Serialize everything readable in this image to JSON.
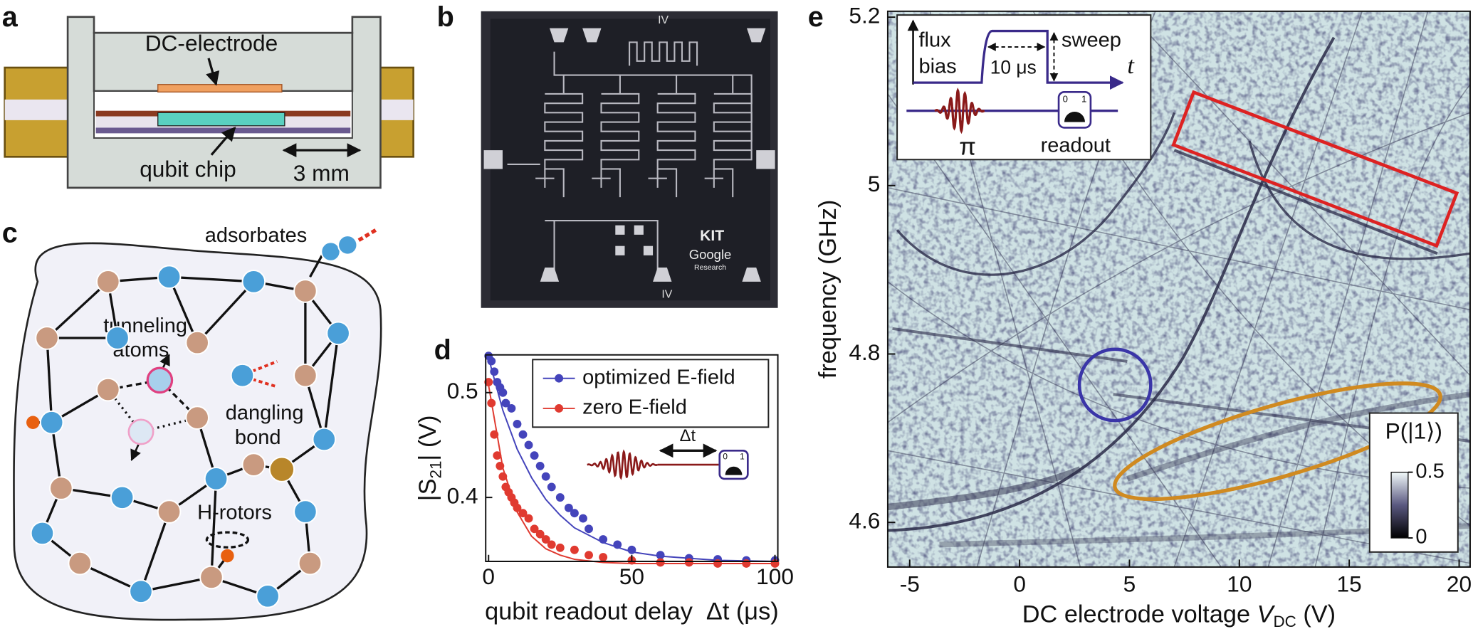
{
  "figure": {
    "panel_labels": [
      "a",
      "b",
      "c",
      "d",
      "e"
    ],
    "a": {
      "electrode": "DC-electrode",
      "chip": "qubit chip",
      "scale": "3 mm"
    },
    "b": {
      "chip_marks": [
        "IV",
        "IV"
      ],
      "logo": [
        "KIT",
        "Google",
        "Research"
      ]
    },
    "c": {
      "adsorbates": "adsorbates",
      "tunneling": [
        "tunneling",
        "atoms"
      ],
      "dangling": [
        "dangling",
        "bond"
      ],
      "rotors": "H-rotors"
    },
    "d_inset": {
      "delay": "Δt",
      "readout_ticks": [
        "0",
        "1"
      ]
    },
    "e_inset": {
      "flux": [
        "flux",
        "bias"
      ],
      "duration": "10 μs",
      "sweep": "sweep",
      "time": "t",
      "pulse": "π",
      "readout": "readout",
      "readout_ticks": [
        "0",
        "1"
      ]
    }
  },
  "chart_data": [
    {
      "type": "scatter",
      "x_label": "qubit readout delay  Δt (μs)",
      "y_label": [
        "|S",
        "21",
        "| (V)"
      ],
      "xlim": [
        -1,
        101
      ],
      "xticks": [
        0,
        50,
        100
      ],
      "ylim": [
        0.339,
        0.536
      ],
      "yticks": [
        0.4,
        0.5
      ],
      "series": [
        {
          "name": "optimized E-field",
          "color": "#4444bb",
          "x": [
            0,
            1,
            2,
            3,
            4,
            5,
            6,
            8,
            10,
            12,
            14,
            16,
            18,
            20,
            22,
            25,
            28,
            30,
            33,
            35,
            40,
            45,
            50,
            60,
            70,
            80,
            90,
            100
          ],
          "values": [
            0.535,
            0.53,
            0.52,
            0.51,
            0.505,
            0.5,
            0.49,
            0.485,
            0.47,
            0.46,
            0.45,
            0.44,
            0.43,
            0.42,
            0.41,
            0.4,
            0.39,
            0.385,
            0.38,
            0.37,
            0.36,
            0.355,
            0.35,
            0.345,
            0.342,
            0.341,
            0.34,
            0.34
          ],
          "fit_x": [
            0,
            5,
            10,
            15,
            20,
            25,
            30,
            40,
            50,
            60,
            80,
            100
          ],
          "fit_values": [
            0.533,
            0.483,
            0.446,
            0.419,
            0.398,
            0.383,
            0.371,
            0.357,
            0.348,
            0.344,
            0.34,
            0.339
          ]
        },
        {
          "name": "zero E-field",
          "color": "#e03a30",
          "x": [
            0,
            1,
            2,
            3,
            4,
            5,
            6,
            7,
            8,
            9,
            10,
            12,
            14,
            16,
            18,
            20,
            22,
            25,
            30,
            35,
            40,
            50,
            60,
            70,
            80,
            90,
            100
          ],
          "values": [
            0.51,
            0.49,
            0.46,
            0.44,
            0.43,
            0.42,
            0.41,
            0.405,
            0.4,
            0.395,
            0.39,
            0.385,
            0.38,
            0.37,
            0.365,
            0.36,
            0.355,
            0.352,
            0.35,
            0.345,
            0.343,
            0.34,
            0.338,
            0.338,
            0.337,
            0.337,
            0.337
          ],
          "fit_x": [
            0,
            5,
            10,
            15,
            20,
            25,
            30,
            40,
            50,
            60,
            80,
            100
          ],
          "fit_values": [
            0.507,
            0.428,
            0.386,
            0.363,
            0.351,
            0.345,
            0.341,
            0.338,
            0.337,
            0.337,
            0.337,
            0.337
          ]
        }
      ]
    },
    {
      "type": "heatmap",
      "y_label": "frequency (GHz)",
      "x_label": [
        "DC electrode voltage ",
        "V",
        "DC",
        " (V)"
      ],
      "xlim": [
        -6,
        20.5
      ],
      "xticks": [
        -5,
        0,
        5,
        10,
        15,
        20
      ],
      "ylim": [
        4.547,
        5.207
      ],
      "yticks": [
        4.6,
        4.8,
        5,
        5.2
      ],
      "colorbar": {
        "label": "P(|1⟩)",
        "lim": [
          0,
          0.5
        ],
        "ticks": [
          0,
          0.5
        ]
      }
    }
  ]
}
